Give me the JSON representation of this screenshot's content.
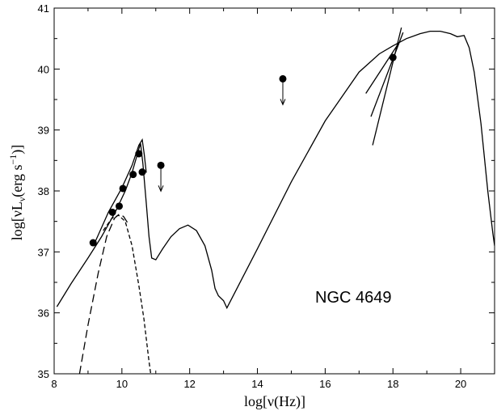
{
  "chart_data": {
    "type": "scatter",
    "title": "",
    "xlabel": "log[ν(Hz)]",
    "ylabel_parts": [
      "log[νL",
      "ν",
      "(erg s",
      "−1",
      ")]"
    ],
    "xlim": [
      8,
      21
    ],
    "ylim": [
      35,
      41
    ],
    "x_ticks": [
      8,
      10,
      12,
      14,
      16,
      18,
      20
    ],
    "y_ticks": [
      35,
      36,
      37,
      38,
      39,
      40,
      41
    ],
    "grid": false,
    "annotation": "NGC 4649",
    "points": [
      {
        "x": 9.15,
        "y": 37.15
      },
      {
        "x": 9.72,
        "y": 37.65
      },
      {
        "x": 9.92,
        "y": 37.75
      },
      {
        "x": 10.03,
        "y": 38.04
      },
      {
        "x": 10.33,
        "y": 38.27
      },
      {
        "x": 10.5,
        "y": 38.61
      },
      {
        "x": 10.6,
        "y": 38.31
      },
      {
        "x": 18.0,
        "y": 40.19
      }
    ],
    "upper_limits": [
      {
        "x": 11.15,
        "y": 38.42
      },
      {
        "x": 14.75,
        "y": 39.84
      }
    ],
    "series": [
      {
        "style": "solid",
        "x": [
          8.08,
          8.5,
          9.0,
          9.4,
          9.8,
          10.1,
          10.3,
          10.48,
          10.55,
          10.62,
          10.72,
          10.8,
          10.88,
          11.0,
          11.2,
          11.45,
          11.7,
          11.95,
          12.2,
          12.45,
          12.65,
          12.75,
          12.85,
          13.0,
          13.1,
          14.0,
          15.0,
          16.0,
          17.0,
          17.6,
          18.0,
          18.4,
          18.8,
          19.1,
          19.4,
          19.7,
          19.9,
          20.1,
          20.25,
          20.4,
          20.6,
          20.8,
          20.95,
          21.0
        ],
        "y": [
          36.1,
          36.48,
          36.9,
          37.25,
          37.65,
          38.0,
          38.3,
          38.65,
          38.78,
          38.45,
          37.8,
          37.25,
          36.9,
          36.87,
          37.05,
          37.25,
          37.38,
          37.44,
          37.35,
          37.1,
          36.7,
          36.4,
          36.28,
          36.2,
          36.08,
          37.05,
          38.15,
          39.15,
          39.95,
          40.25,
          40.38,
          40.5,
          40.58,
          40.62,
          40.62,
          40.58,
          40.53,
          40.55,
          40.35,
          39.95,
          39.1,
          38.0,
          37.3,
          37.1
        ]
      },
      {
        "style": "solid",
        "x": [
          9.2,
          9.6,
          10.0,
          10.3,
          10.5,
          10.6,
          10.66,
          10.72
        ],
        "y": [
          37.15,
          37.65,
          38.05,
          38.42,
          38.75,
          38.84,
          38.6,
          38.3
        ]
      },
      {
        "style": "long-dash",
        "x": [
          8.75,
          9.0,
          9.3,
          9.55,
          9.78,
          9.92,
          10.05,
          10.2
        ],
        "y": [
          35.0,
          35.8,
          36.65,
          37.25,
          37.55,
          37.62,
          37.58,
          37.45
        ]
      },
      {
        "style": "short-dash",
        "x": [
          9.45,
          9.7,
          9.9,
          10.1,
          10.3,
          10.5,
          10.65,
          10.8,
          10.85
        ],
        "y": [
          37.35,
          37.55,
          37.6,
          37.5,
          37.1,
          36.45,
          35.9,
          35.2,
          35.0
        ]
      },
      {
        "style": "solid",
        "x": [
          17.4,
          18.25
        ],
        "y": [
          38.75,
          40.68
        ]
      },
      {
        "style": "solid",
        "x": [
          17.35,
          18.3
        ],
        "y": [
          39.22,
          40.6
        ]
      },
      {
        "style": "solid",
        "x": [
          17.2,
          18.2
        ],
        "y": [
          39.6,
          40.45
        ]
      }
    ]
  }
}
